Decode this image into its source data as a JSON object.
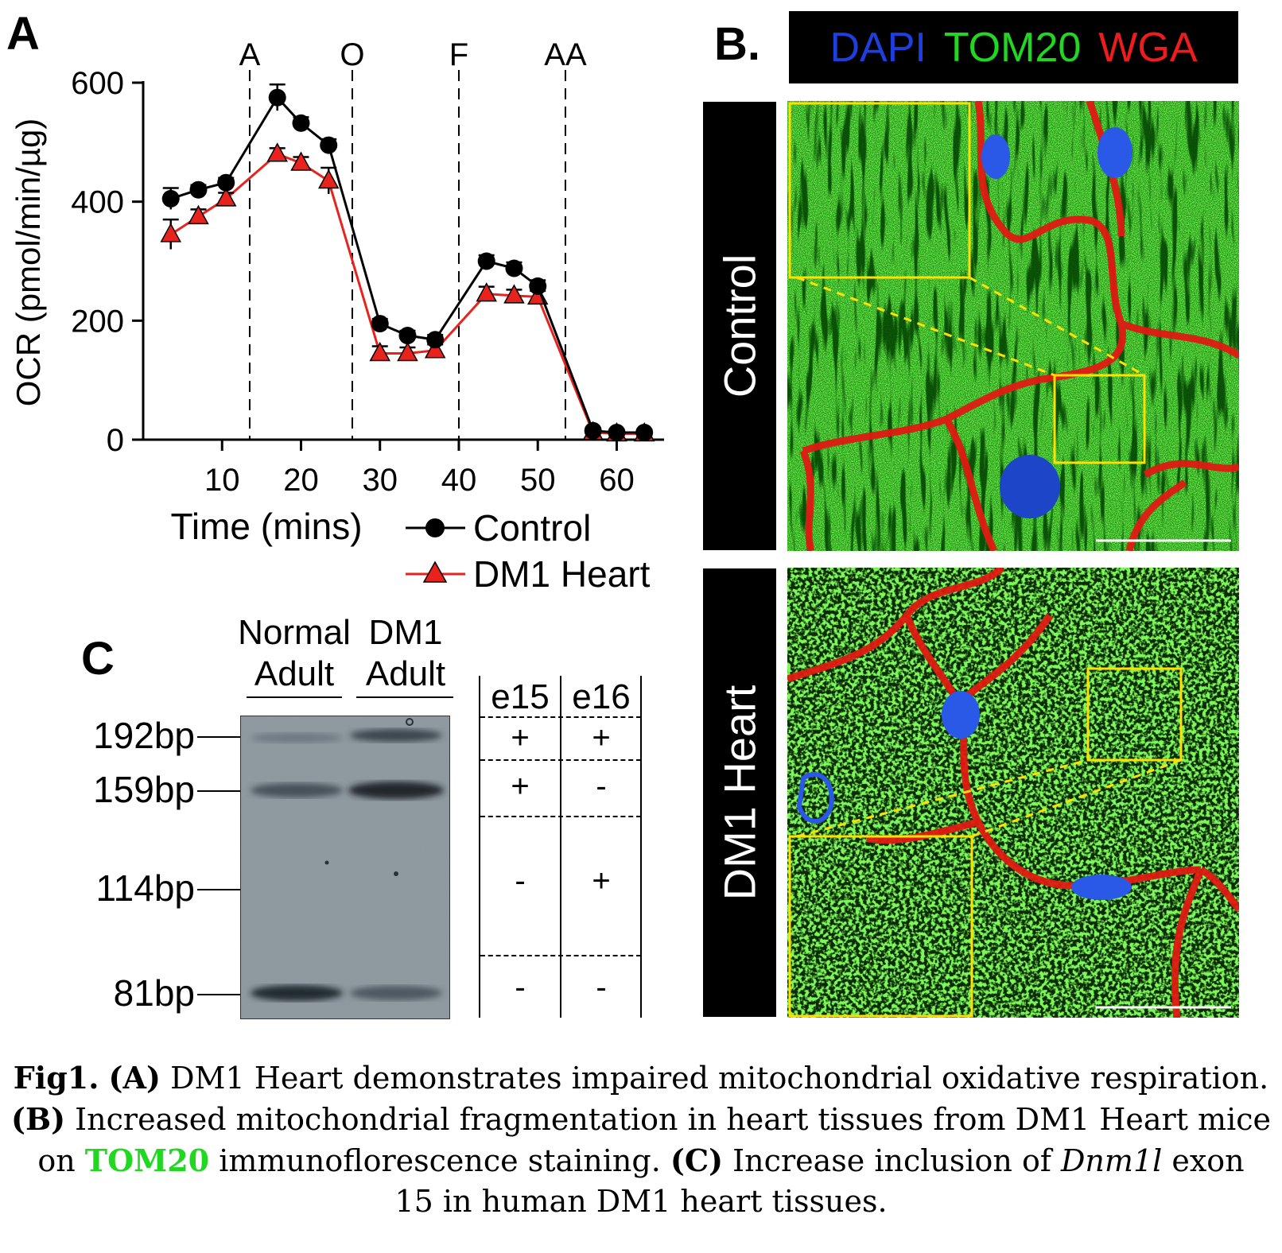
{
  "panelA": {
    "letter": "A",
    "ylabel": "OCR (pmol/min/µg)",
    "xlabel": "Time (mins)",
    "markers": [
      "A",
      "O",
      "F",
      "AA"
    ],
    "legend": [
      "Control",
      "DM1 Heart"
    ]
  },
  "chart_data": {
    "type": "line",
    "x": [
      3.5,
      7,
      10.5,
      17,
      20,
      23.5,
      30,
      33.5,
      37,
      43.5,
      47,
      50,
      57,
      60,
      63.5
    ],
    "series": [
      {
        "name": "Control",
        "color": "#000000",
        "marker": "circle",
        "values": [
          405,
          420,
          432,
          575,
          532,
          495,
          195,
          175,
          168,
          300,
          288,
          258,
          15,
          12,
          12
        ],
        "errors": [
          18,
          8,
          8,
          22,
          10,
          10,
          8,
          8,
          8,
          10,
          10,
          10,
          5,
          5,
          5
        ]
      },
      {
        "name": "DM1 Heart",
        "color": "#e8231d",
        "marker": "triangle",
        "values": [
          345,
          375,
          405,
          480,
          465,
          435,
          145,
          145,
          150,
          245,
          242,
          240,
          12,
          10,
          10
        ],
        "errors": [
          25,
          12,
          10,
          10,
          10,
          22,
          12,
          10,
          10,
          12,
          10,
          10,
          5,
          5,
          5
        ]
      }
    ],
    "injections": [
      {
        "label": "A",
        "x": 13.5
      },
      {
        "label": "O",
        "x": 26.5
      },
      {
        "label": "F",
        "x": 40
      },
      {
        "label": "AA",
        "x": 53.5
      }
    ],
    "xticks": [
      10,
      20,
      30,
      40,
      50,
      60
    ],
    "yticks": [
      0,
      200,
      400,
      600
    ],
    "xlim": [
      0,
      66
    ],
    "ylim": [
      0,
      600
    ],
    "xlabel": "Time (mins)",
    "ylabel": "OCR (pmol/min/µg)"
  },
  "panelB": {
    "letter": "B.",
    "stain_labels": [
      {
        "text": "DAPI",
        "color": "#1e3fe0"
      },
      {
        "text": "TOM20",
        "color": "#22d622"
      },
      {
        "text": "WGA",
        "color": "#ee1c1c"
      }
    ],
    "row_labels": [
      "Control",
      "DM1 Heart"
    ]
  },
  "panelC": {
    "letter": "C",
    "lanes": [
      {
        "line1": "Normal",
        "line2": "Adult"
      },
      {
        "line1": "DM1",
        "line2": "Adult"
      }
    ],
    "bands": [
      "192bp",
      "159bp",
      "114bp",
      "81bp"
    ],
    "table_headers": [
      "e15",
      "e16"
    ],
    "table_rows": [
      [
        "+",
        "+"
      ],
      [
        "+",
        "-"
      ],
      [
        "-",
        "+"
      ],
      [
        "-",
        "-"
      ]
    ]
  },
  "caption": {
    "l1_fig": "Fig1.",
    "l1_tag": "(A)",
    "l1_text": " DM1 Heart demonstrates impaired mitochondrial oxidative respiration.",
    "l2_tag": "(B)",
    "l2_text": " Increased mitochondrial fragmentation in heart tissues from DM1 Heart mice",
    "l3_pre": "on ",
    "l3_tom": "TOM20",
    "l3_mid": " immunoflorescence staining. ",
    "l3_tag": "(C)",
    "l3_text": " Increase inclusion of ",
    "l3_gene": "Dnm1l",
    "l3_end": " exon",
    "l4_text": "15 in human DM1 heart tissues."
  }
}
